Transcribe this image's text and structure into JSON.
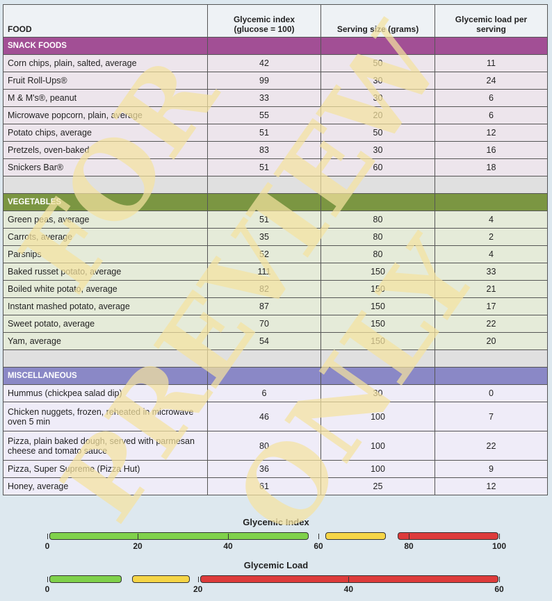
{
  "table": {
    "headers": {
      "food": "FOOD",
      "gi_line1": "Glycemic index",
      "gi_line2": "(glucose = 100)",
      "serving": "Serving size (grams)",
      "gl": "Glycemic load per serving"
    },
    "sections": [
      {
        "name": "SNACK FOODS",
        "rows": [
          {
            "food": "Corn chips, plain, salted, average",
            "gi": "42",
            "serving": "50",
            "gl": "11"
          },
          {
            "food": "Fruit Roll-Ups®",
            "gi": "99",
            "serving": "30",
            "gl": "24"
          },
          {
            "food": "M & M's®, peanut",
            "gi": "33",
            "serving": "30",
            "gl": "6"
          },
          {
            "food": "Microwave popcorn, plain, average",
            "gi": "55",
            "serving": "20",
            "gl": "6"
          },
          {
            "food": "Potato chips, average",
            "gi": "51",
            "serving": "50",
            "gl": "12"
          },
          {
            "food": "Pretzels, oven-baked",
            "gi": "83",
            "serving": "30",
            "gl": "16"
          },
          {
            "food": "Snickers Bar®",
            "gi": "51",
            "serving": "60",
            "gl": "18"
          }
        ]
      },
      {
        "name": "VEGETABLES",
        "rows": [
          {
            "food": "Green peas, average",
            "gi": "51",
            "serving": "80",
            "gl": "4"
          },
          {
            "food": "Carrots, average",
            "gi": "35",
            "serving": "80",
            "gl": "2"
          },
          {
            "food": "Parsnips",
            "gi": "52",
            "serving": "80",
            "gl": "4"
          },
          {
            "food": "Baked russet potato, average",
            "gi": "111",
            "serving": "150",
            "gl": "33"
          },
          {
            "food": "Boiled white potato, average",
            "gi": "82",
            "serving": "150",
            "gl": "21"
          },
          {
            "food": "Instant mashed potato, average",
            "gi": "87",
            "serving": "150",
            "gl": "17"
          },
          {
            "food": "Sweet potato, average",
            "gi": "70",
            "serving": "150",
            "gl": "22"
          },
          {
            "food": "Yam, average",
            "gi": "54",
            "serving": "150",
            "gl": "20"
          }
        ]
      },
      {
        "name": "MISCELLANEOUS",
        "rows": [
          {
            "food": "Hummus (chickpea salad dip)",
            "gi": "6",
            "serving": "30",
            "gl": "0"
          },
          {
            "food": "Chicken nuggets, frozen, reheated in microwave oven 5 min",
            "gi": "46",
            "serving": "100",
            "gl": "7"
          },
          {
            "food": "Pizza, plain baked dough, served with parmesan cheese and tomato sauce",
            "gi": "80",
            "serving": "100",
            "gl": "22"
          },
          {
            "food": "Pizza, Super Supreme (Pizza Hut)",
            "gi": "36",
            "serving": "100",
            "gl": "9"
          },
          {
            "food": "Honey, average",
            "gi": "61",
            "serving": "25",
            "gl": "12"
          }
        ]
      }
    ]
  },
  "scales": {
    "gi": {
      "title": "Glycemic Index",
      "ticks": [
        "0",
        "20",
        "40",
        "60",
        "80",
        "100"
      ],
      "ranges": [
        {
          "from": 0,
          "to": 58,
          "color": "#7fd14b"
        },
        {
          "from": 61,
          "to": 75,
          "color": "#f5d547"
        },
        {
          "from": 77,
          "to": 100,
          "color": "#dd3b3b"
        }
      ]
    },
    "gl": {
      "title": "Glycemic Load",
      "ticks": [
        "0",
        "20",
        "40",
        "60"
      ],
      "ranges": [
        {
          "from": 0,
          "to": 10,
          "color": "#7fd14b"
        },
        {
          "from": 11,
          "to": 19,
          "color": "#f5d547"
        },
        {
          "from": 20,
          "to": 60,
          "color": "#dd3b3b"
        }
      ]
    }
  },
  "watermark": {
    "line1": "FOR",
    "line2": "PREVIEW",
    "line3": "ONLY"
  }
}
